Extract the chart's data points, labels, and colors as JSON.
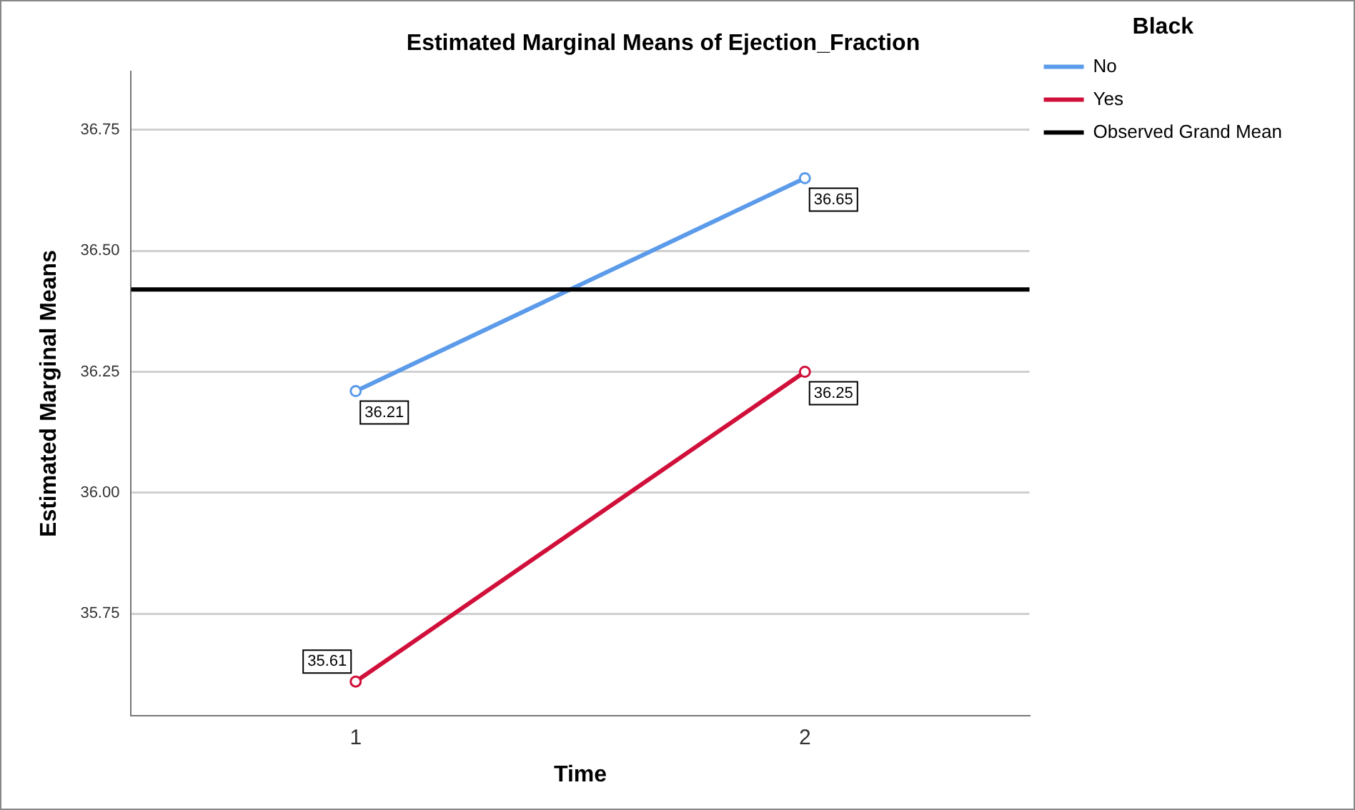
{
  "chart_data": {
    "type": "line",
    "title": "Estimated Marginal Means of Ejection_Fraction",
    "xlabel": "Time",
    "ylabel": "Estimated Marginal Means",
    "legend_title": "Black",
    "categories": [
      "1",
      "2"
    ],
    "series": [
      {
        "name": "No",
        "color": "#5b9bea",
        "values": [
          36.21,
          36.65
        ]
      },
      {
        "name": "Yes",
        "color": "#d0103a",
        "values": [
          35.61,
          36.25
        ]
      }
    ],
    "ref_lines": [
      {
        "axis": "y",
        "value": 36.42,
        "label": "Observed Grand Mean",
        "color": "#000000"
      }
    ],
    "ylim": [
      35.54,
      36.87
    ],
    "yticks": [
      35.75,
      {
        "value": 36.0,
        "label": "36.00"
      },
      36.25,
      {
        "value": 36.5,
        "label": "36.50"
      },
      36.75
    ],
    "grid": "y",
    "legend": "top right",
    "marker": "circle",
    "line_style": "solid",
    "data_labels": true
  }
}
